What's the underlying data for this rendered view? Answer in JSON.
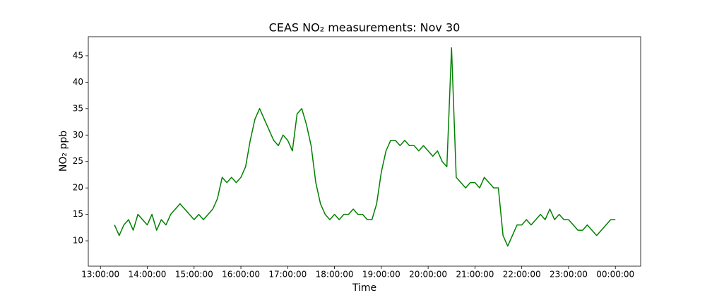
{
  "chart_data": {
    "type": "line",
    "title": "CEAS NO₂ measurements: Nov 30",
    "xlabel": "Time",
    "ylabel": "NO₂ ppb",
    "x": [
      13.3,
      13.4,
      13.5,
      13.6,
      13.7,
      13.8,
      13.9,
      14.0,
      14.1,
      14.2,
      14.3,
      14.4,
      14.5,
      14.6,
      14.7,
      14.8,
      14.9,
      15.0,
      15.1,
      15.2,
      15.3,
      15.4,
      15.5,
      15.6,
      15.7,
      15.8,
      15.9,
      16.0,
      16.1,
      16.2,
      16.3,
      16.4,
      16.5,
      16.6,
      16.7,
      16.8,
      16.9,
      17.0,
      17.1,
      17.2,
      17.3,
      17.4,
      17.5,
      17.6,
      17.7,
      17.8,
      17.9,
      18.0,
      18.1,
      18.2,
      18.3,
      18.4,
      18.5,
      18.6,
      18.7,
      18.8,
      18.9,
      19.0,
      19.1,
      19.2,
      19.3,
      19.4,
      19.5,
      19.6,
      19.7,
      19.8,
      19.9,
      20.0,
      20.1,
      20.2,
      20.3,
      20.4,
      20.5,
      20.6,
      20.7,
      20.8,
      20.9,
      21.0,
      21.1,
      21.2,
      21.3,
      21.4,
      21.5,
      21.6,
      21.7,
      21.8,
      21.9,
      22.0,
      22.1,
      22.2,
      22.3,
      22.4,
      22.5,
      22.6,
      22.7,
      22.8,
      22.9,
      23.0,
      23.1,
      23.2,
      23.3,
      23.4,
      23.5,
      23.6,
      23.7,
      23.8,
      23.9,
      24.0
    ],
    "series": [
      {
        "name": "NO₂",
        "color": "#008000",
        "values": [
          13,
          11,
          13,
          14,
          12,
          15,
          14,
          13,
          15,
          12,
          14,
          13,
          15,
          16,
          17,
          16,
          15,
          14,
          15,
          14,
          15,
          16,
          18,
          22,
          21,
          22,
          21,
          22,
          24,
          29,
          33,
          35,
          33,
          31,
          29,
          28,
          30,
          29,
          27,
          34,
          35,
          32,
          28,
          21,
          17,
          15,
          14,
          15,
          14,
          15,
          15,
          16,
          15,
          15,
          14,
          14,
          17,
          23,
          27,
          29,
          29,
          28,
          29,
          28,
          28,
          27,
          28,
          27,
          26,
          27,
          25,
          24,
          46.5,
          22,
          21,
          20,
          21,
          21,
          20,
          22,
          21,
          20,
          20,
          11,
          9,
          11,
          13,
          13,
          14,
          13,
          14,
          15,
          14,
          16,
          14,
          15,
          14,
          14,
          13,
          12,
          12,
          13,
          12,
          11,
          12,
          13,
          14,
          14
        ]
      }
    ],
    "xlim": [
      12.74,
      24.54
    ],
    "ylim": [
      5.2,
      48.6
    ],
    "xticks": [
      {
        "value": 13,
        "label": "13:00:00"
      },
      {
        "value": 14,
        "label": "14:00:00"
      },
      {
        "value": 15,
        "label": "15:00:00"
      },
      {
        "value": 16,
        "label": "16:00:00"
      },
      {
        "value": 17,
        "label": "17:00:00"
      },
      {
        "value": 18,
        "label": "18:00:00"
      },
      {
        "value": 19,
        "label": "19:00:00"
      },
      {
        "value": 20,
        "label": "20:00:00"
      },
      {
        "value": 21,
        "label": "21:00:00"
      },
      {
        "value": 22,
        "label": "22:00:00"
      },
      {
        "value": 23,
        "label": "23:00:00"
      },
      {
        "value": 24,
        "label": "00:00:00"
      }
    ],
    "yticks": [
      10,
      15,
      20,
      25,
      30,
      35,
      40,
      45
    ]
  }
}
